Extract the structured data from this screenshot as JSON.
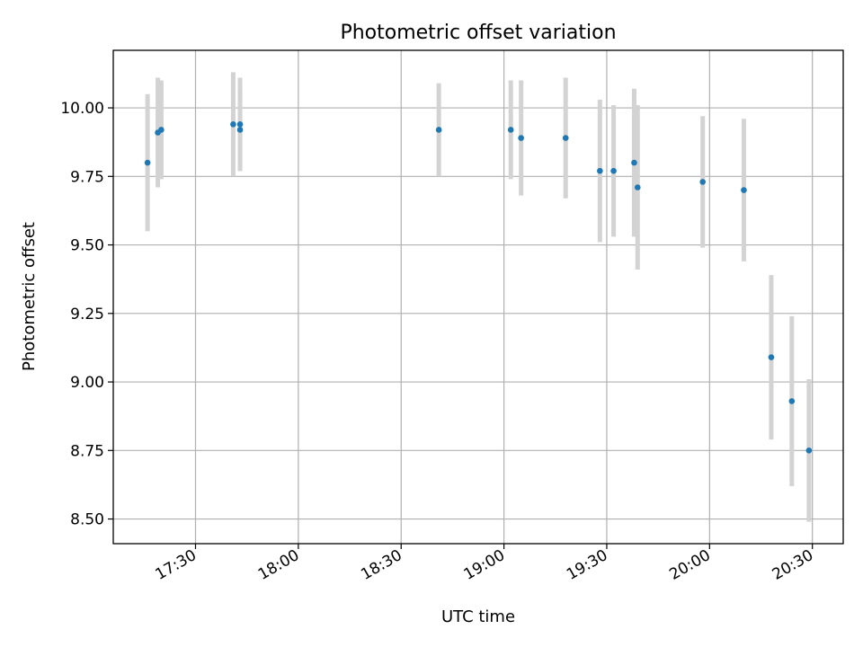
{
  "chart_data": {
    "type": "scatter",
    "title": "Photometric offset variation",
    "xlabel": "UTC time",
    "ylabel": "Photometric offset",
    "xlim": [
      "17:06",
      "20:39"
    ],
    "ylim": [
      8.41,
      10.21
    ],
    "x_ticks": [
      "17:30",
      "18:00",
      "18:30",
      "19:00",
      "19:30",
      "20:00",
      "20:30"
    ],
    "y_ticks": [
      "8.50",
      "8.75",
      "9.00",
      "9.25",
      "9.50",
      "9.75",
      "10.00"
    ],
    "grid": true,
    "marker_color": "#1f77b4",
    "errorbar_color": "#d3d3d3",
    "points": [
      {
        "t": "17:16",
        "y": 9.8,
        "err": 0.25
      },
      {
        "t": "17:19",
        "y": 9.91,
        "err": 0.2
      },
      {
        "t": "17:20",
        "y": 9.92,
        "err": 0.18
      },
      {
        "t": "17:41",
        "y": 9.94,
        "err": 0.19
      },
      {
        "t": "17:43",
        "y": 9.92,
        "err": 0.15
      },
      {
        "t": "17:43",
        "y": 9.94,
        "err": 0.17
      },
      {
        "t": "18:41",
        "y": 9.92,
        "err": 0.17
      },
      {
        "t": "19:02",
        "y": 9.92,
        "err": 0.18
      },
      {
        "t": "19:05",
        "y": 9.89,
        "err": 0.21
      },
      {
        "t": "19:18",
        "y": 9.89,
        "err": 0.22
      },
      {
        "t": "19:28",
        "y": 9.77,
        "err": 0.26
      },
      {
        "t": "19:32",
        "y": 9.77,
        "err": 0.24
      },
      {
        "t": "19:38",
        "y": 9.8,
        "err": 0.27
      },
      {
        "t": "19:39",
        "y": 9.71,
        "err": 0.3
      },
      {
        "t": "19:58",
        "y": 9.73,
        "err": 0.24
      },
      {
        "t": "20:10",
        "y": 9.7,
        "err": 0.26
      },
      {
        "t": "20:18",
        "y": 9.09,
        "err": 0.3
      },
      {
        "t": "20:24",
        "y": 8.93,
        "err": 0.31
      },
      {
        "t": "20:29",
        "y": 8.75,
        "err": 0.26
      }
    ]
  }
}
